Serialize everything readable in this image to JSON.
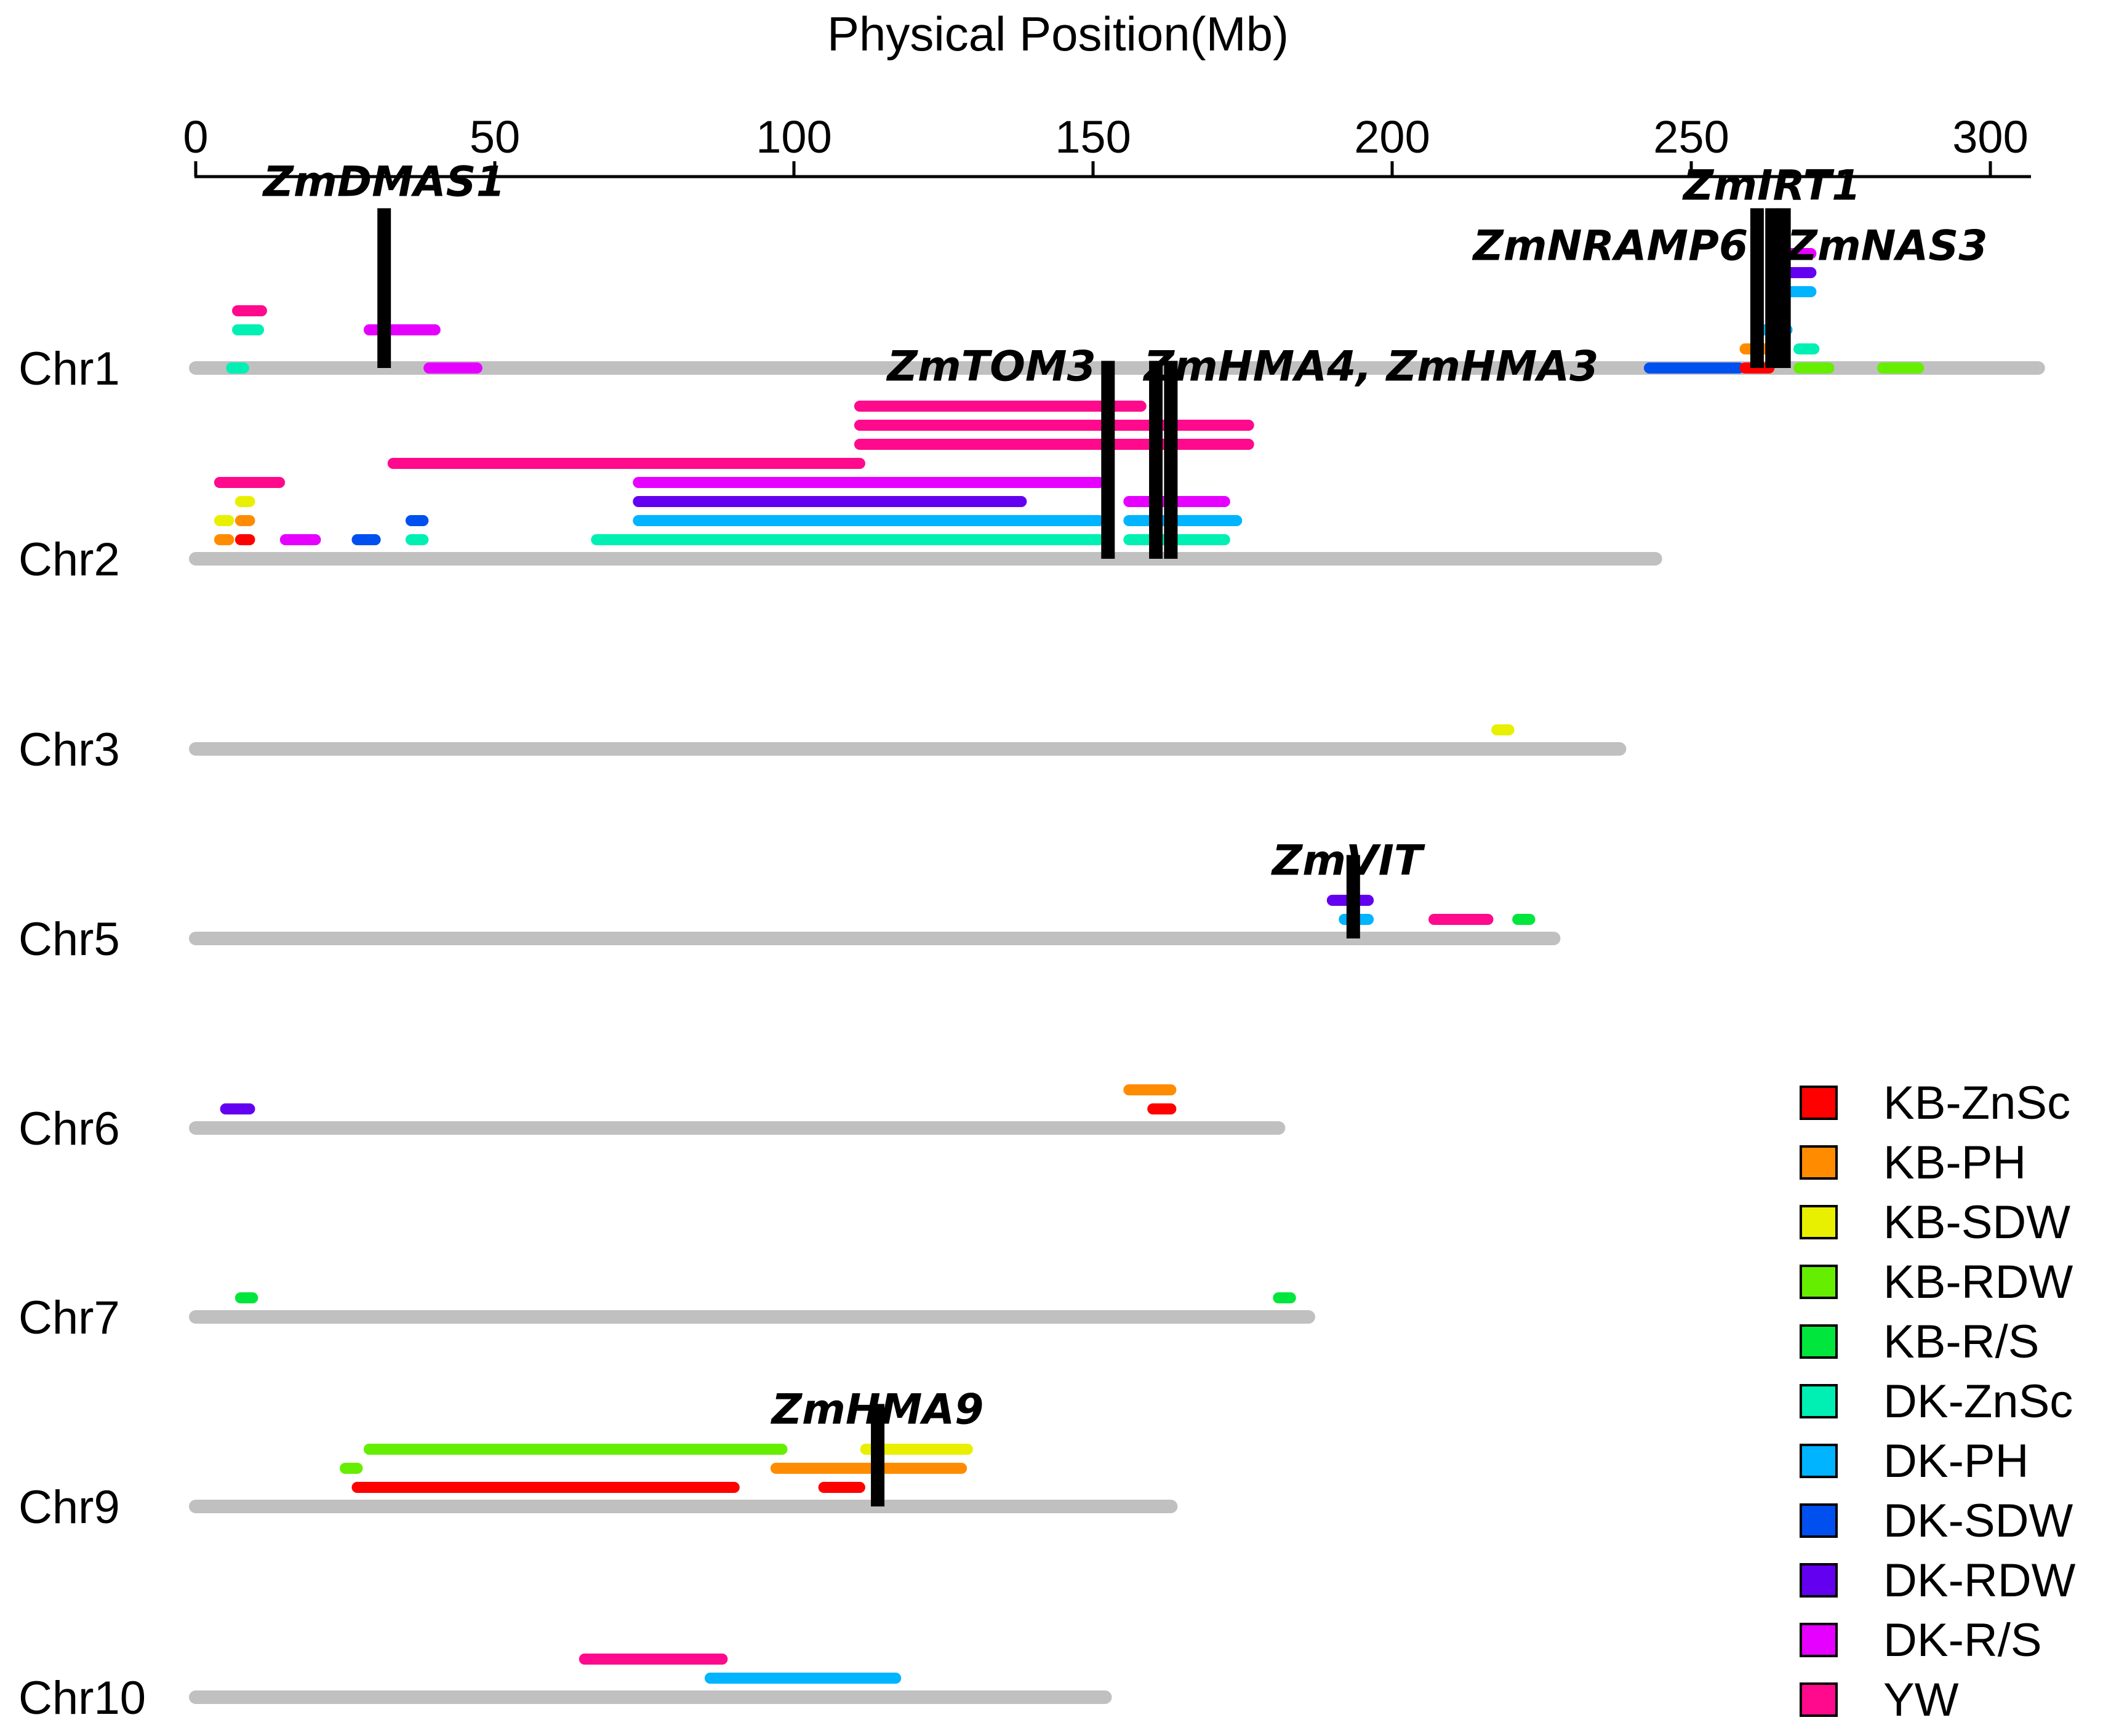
{
  "chart_data": {
    "type": "qtl-map",
    "title": "Physical Position(Mb)",
    "xaxis": {
      "label": "Physical Position(Mb)",
      "ticks": [
        0,
        50,
        100,
        150,
        200,
        250,
        300
      ],
      "range": [
        0,
        300
      ]
    },
    "legend": {
      "position": "bottom-right"
    },
    "traits": [
      {
        "name": "KB-ZnSc",
        "color": "#FF0000"
      },
      {
        "name": "KB-PH",
        "color": "#FF8C00"
      },
      {
        "name": "KB-SDW",
        "color": "#E8F000"
      },
      {
        "name": "KB-RDW",
        "color": "#66EE00"
      },
      {
        "name": "KB-R/S",
        "color": "#00E63C"
      },
      {
        "name": "DK-ZnSc",
        "color": "#00F0B4"
      },
      {
        "name": "DK-PH",
        "color": "#00B4FF"
      },
      {
        "name": "DK-SDW",
        "color": "#0050F0"
      },
      {
        "name": "DK-RDW",
        "color": "#6400F0"
      },
      {
        "name": "DK-R/S",
        "color": "#E600FF"
      },
      {
        "name": "YW",
        "color": "#FF0A8C"
      }
    ],
    "chromosomes": [
      {
        "name": "Chr1",
        "length": 308,
        "qtls": [
          {
            "trait": "YW",
            "start": 7,
            "end": 11,
            "row": 3
          },
          {
            "trait": "DK-ZnSc",
            "start": 7,
            "end": 10.5,
            "row": 2
          },
          {
            "trait": "DK-ZnSc",
            "start": 6,
            "end": 8,
            "row": 0
          },
          {
            "trait": "DK-R/S",
            "start": 29,
            "end": 40,
            "row": 2
          },
          {
            "trait": "DK-R/S",
            "start": 39,
            "end": 47,
            "row": 0
          },
          {
            "trait": "DK-SDW",
            "start": 243,
            "end": 258,
            "row": 0
          },
          {
            "trait": "KB-ZnSc",
            "start": 259,
            "end": 263,
            "row": 0
          },
          {
            "trait": "KB-PH",
            "start": 259,
            "end": 264,
            "row": 1
          },
          {
            "trait": "DK-PH",
            "start": 262,
            "end": 266,
            "row": 2
          },
          {
            "trait": "DK-PH",
            "start": 266,
            "end": 270,
            "row": 4
          },
          {
            "trait": "DK-RDW",
            "start": 266,
            "end": 270,
            "row": 5
          },
          {
            "trait": "DK-R/S",
            "start": 266,
            "end": 270,
            "row": 6
          },
          {
            "trait": "DK-ZnSc",
            "start": 268,
            "end": 270.5,
            "row": 1
          },
          {
            "trait": "KB-RDW",
            "start": 268,
            "end": 273,
            "row": 0
          },
          {
            "trait": "KB-RDW",
            "start": 282,
            "end": 288,
            "row": 0
          }
        ],
        "genes": [
          {
            "name": "ZmDMAS1",
            "pos": 31.5
          },
          {
            "name": "ZmNRAMP6",
            "pos": 261
          },
          {
            "name": "ZmIRT1",
            "pos": 263.5
          },
          {
            "name": "ZmNAS3",
            "pos": 265.5
          }
        ]
      },
      {
        "name": "Chr2",
        "length": 244,
        "qtls": [
          {
            "trait": "YW",
            "start": 111,
            "end": 158,
            "row": 8
          },
          {
            "trait": "YW",
            "start": 111,
            "end": 176,
            "row": 7
          },
          {
            "trait": "YW",
            "start": 111,
            "end": 176,
            "row": 6
          },
          {
            "trait": "YW",
            "start": 33,
            "end": 111,
            "row": 5
          },
          {
            "trait": "YW",
            "start": 4,
            "end": 14,
            "row": 4
          },
          {
            "trait": "DK-R/S",
            "start": 74,
            "end": 151,
            "row": 4
          },
          {
            "trait": "DK-R/S",
            "start": 156,
            "end": 172,
            "row": 3
          },
          {
            "trait": "DK-RDW",
            "start": 74,
            "end": 138,
            "row": 3
          },
          {
            "trait": "DK-PH",
            "start": 74,
            "end": 151,
            "row": 2
          },
          {
            "trait": "DK-PH",
            "start": 156,
            "end": 174,
            "row": 2
          },
          {
            "trait": "DK-ZnSc",
            "start": 67,
            "end": 151,
            "row": 1
          },
          {
            "trait": "DK-ZnSc",
            "start": 156,
            "end": 172,
            "row": 1
          },
          {
            "trait": "KB-SDW",
            "start": 4,
            "end": 5.5,
            "row": 2
          },
          {
            "trait": "KB-SDW",
            "start": 7.5,
            "end": 9,
            "row": 3
          },
          {
            "trait": "KB-PH",
            "start": 7.5,
            "end": 9,
            "row": 2
          },
          {
            "trait": "KB-PH",
            "start": 4,
            "end": 5.5,
            "row": 1
          },
          {
            "trait": "KB-ZnSc",
            "start": 7.5,
            "end": 9,
            "row": 1
          },
          {
            "trait": "DK-R/S",
            "start": 15,
            "end": 20,
            "row": 1
          },
          {
            "trait": "DK-SDW",
            "start": 27,
            "end": 30,
            "row": 1
          },
          {
            "trait": "DK-SDW",
            "start": 36,
            "end": 38,
            "row": 2
          },
          {
            "trait": "DK-ZnSc",
            "start": 36,
            "end": 38,
            "row": 1
          }
        ],
        "genes": [
          {
            "name": "ZmTOM3",
            "pos": 152.5
          },
          {
            "name": "ZmHMA4, ZmHMA3",
            "pos": 160.5
          },
          {
            "name": "ZmHMA4, ZmHMA3",
            "pos": 163
          }
        ]
      },
      {
        "name": "Chr3",
        "length": 238,
        "qtls": [
          {
            "trait": "KB-SDW",
            "start": 217.5,
            "end": 219.5,
            "row": 1
          }
        ],
        "genes": []
      },
      {
        "name": "Chr5",
        "length": 227,
        "qtls": [
          {
            "trait": "DK-RDW",
            "start": 190,
            "end": 196,
            "row": 2
          },
          {
            "trait": "DK-PH",
            "start": 192,
            "end": 196,
            "row": 1
          },
          {
            "trait": "YW",
            "start": 207,
            "end": 216,
            "row": 1
          },
          {
            "trait": "KB-R/S",
            "start": 221,
            "end": 223,
            "row": 1
          }
        ],
        "genes": [
          {
            "name": "ZmVIT",
            "pos": 193.5
          }
        ]
      },
      {
        "name": "Chr6",
        "length": 181,
        "qtls": [
          {
            "trait": "DK-RDW",
            "start": 5,
            "end": 9,
            "row": 1
          },
          {
            "trait": "KB-PH",
            "start": 156,
            "end": 163,
            "row": 2
          },
          {
            "trait": "KB-ZnSc",
            "start": 160,
            "end": 163,
            "row": 1
          }
        ],
        "genes": []
      },
      {
        "name": "Chr7",
        "length": 186,
        "qtls": [
          {
            "trait": "KB-R/S",
            "start": 7.5,
            "end": 9.5,
            "row": 1
          },
          {
            "trait": "KB-R/S",
            "start": 181,
            "end": 183,
            "row": 1
          }
        ],
        "genes": []
      },
      {
        "name": "Chr9",
        "length": 163,
        "qtls": [
          {
            "trait": "KB-RDW",
            "start": 29,
            "end": 98,
            "row": 3
          },
          {
            "trait": "KB-SDW",
            "start": 112,
            "end": 129,
            "row": 3
          },
          {
            "trait": "KB-RDW",
            "start": 25,
            "end": 27,
            "row": 2
          },
          {
            "trait": "KB-PH",
            "start": 97,
            "end": 128,
            "row": 2
          },
          {
            "trait": "KB-ZnSc",
            "start": 27,
            "end": 90,
            "row": 1
          },
          {
            "trait": "KB-ZnSc",
            "start": 105,
            "end": 111,
            "row": 1
          }
        ],
        "genes": [
          {
            "name": "ZmHMA9",
            "pos": 114
          }
        ]
      },
      {
        "name": "Chr10",
        "length": 152,
        "qtls": [
          {
            "trait": "YW",
            "start": 65,
            "end": 88,
            "row": 2
          },
          {
            "trait": "DK-PH",
            "start": 86,
            "end": 117,
            "row": 1
          }
        ],
        "genes": []
      }
    ],
    "gene_labels": [
      {
        "text": "ZmDMAS1",
        "chr": "Chr1",
        "anchor": "middle",
        "pos": 31.5,
        "level": "high"
      },
      {
        "text": "ZmIRT1",
        "chr": "Chr1",
        "anchor": "middle",
        "pos": 263.5,
        "level": "top"
      },
      {
        "text": "ZmNRAMP6",
        "chr": "Chr1",
        "anchor": "end",
        "pos": 259.5,
        "level": "mid"
      },
      {
        "text": "ZmNAS3",
        "chr": "Chr1",
        "anchor": "start",
        "pos": 266,
        "level": "mid"
      },
      {
        "text": "ZmTOM3",
        "chr": "Chr2",
        "anchor": "end",
        "pos": 150.5,
        "level": "low"
      },
      {
        "text": "ZmHMA4, ZmHMA3",
        "chr": "Chr2",
        "anchor": "start",
        "pos": 158.5,
        "level": "low"
      },
      {
        "text": "ZmVIT",
        "chr": "Chr5",
        "anchor": "middle",
        "pos": 192.5,
        "level": "low"
      },
      {
        "text": "ZmHMA9",
        "chr": "Chr9",
        "anchor": "middle",
        "pos": 114,
        "level": "low"
      }
    ]
  }
}
